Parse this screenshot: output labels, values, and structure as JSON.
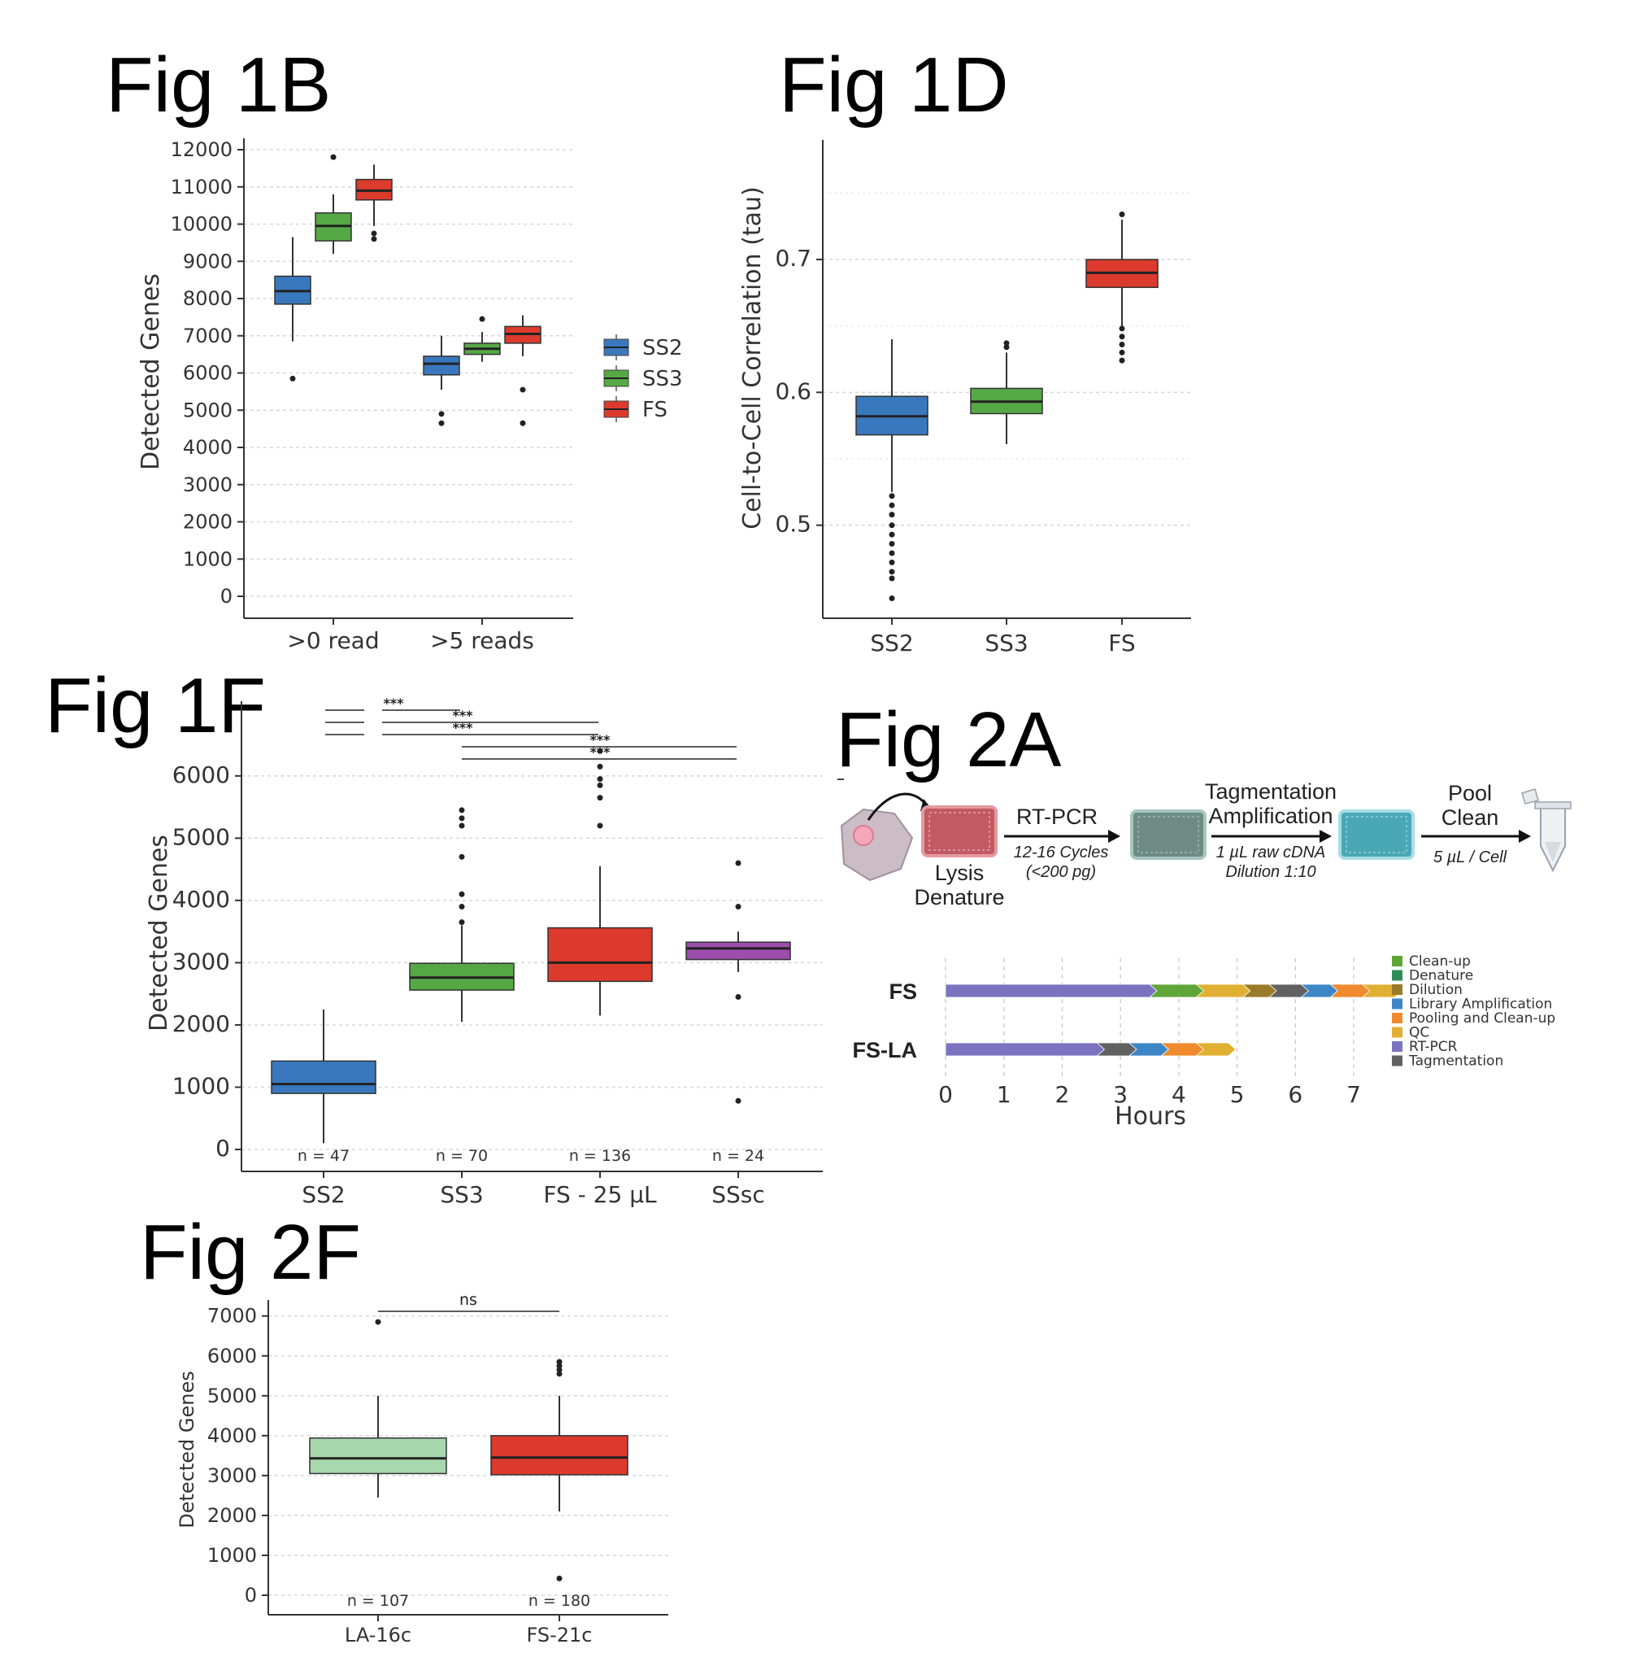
{
  "figures": {
    "fig1b": "Fig 1B",
    "fig1d": "Fig 1D",
    "fig1f": "Fig 1F",
    "fig2a": "Fig 2A",
    "fig2f": "Fig 2F"
  },
  "chart_data": [
    {
      "id": "fig1b",
      "type": "box",
      "ylabel": "Detected Genes",
      "ylim": [
        0,
        12000
      ],
      "yticks": [
        0,
        1000,
        2000,
        3000,
        4000,
        5000,
        6000,
        7000,
        8000,
        9000,
        10000,
        11000,
        12000
      ],
      "categories": [
        ">0 read",
        ">5 reads"
      ],
      "legend_position": "right",
      "series": [
        {
          "name": "SS2",
          "color": "#3a78bd",
          "boxes": [
            {
              "q1": 7850,
              "median": 8200,
              "q3": 8600,
              "whisker_low": 6850,
              "whisker_high": 9650,
              "outliers": [
                5850
              ]
            },
            {
              "q1": 5950,
              "median": 6250,
              "q3": 6450,
              "whisker_low": 5550,
              "whisker_high": 7000,
              "outliers": [
                4900,
                4650
              ]
            }
          ]
        },
        {
          "name": "SS3",
          "color": "#56a846",
          "boxes": [
            {
              "q1": 9550,
              "median": 9950,
              "q3": 10300,
              "whisker_low": 9200,
              "whisker_high": 10800,
              "outliers": [
                11800
              ]
            },
            {
              "q1": 6500,
              "median": 6650,
              "q3": 6800,
              "whisker_low": 6300,
              "whisker_high": 7100,
              "outliers": [
                7450
              ]
            }
          ]
        },
        {
          "name": "FS",
          "color": "#dc3a2d",
          "boxes": [
            {
              "q1": 10650,
              "median": 10900,
              "q3": 11200,
              "whisker_low": 9950,
              "whisker_high": 11600,
              "outliers": [
                9750,
                9600
              ]
            },
            {
              "q1": 6800,
              "median": 7050,
              "q3": 7250,
              "whisker_low": 6450,
              "whisker_high": 7550,
              "outliers": [
                5550,
                4650
              ]
            }
          ]
        }
      ]
    },
    {
      "id": "fig1d",
      "type": "box",
      "ylabel": "Cell-to-Cell Correlation (tau)",
      "ylim": [
        0.43,
        0.79
      ],
      "yticks": [
        0.5,
        0.6,
        0.7
      ],
      "ytick_labels": [
        "0.5",
        "0.6",
        "0.7"
      ],
      "categories": [
        "SS2",
        "SS3",
        "FS"
      ],
      "boxes": [
        {
          "color": "#3a78bd",
          "q1": 0.568,
          "median": 0.582,
          "q3": 0.597,
          "whisker_low": 0.525,
          "whisker_high": 0.64,
          "outliers": [
            0.522,
            0.515,
            0.508,
            0.5,
            0.493,
            0.486,
            0.479,
            0.472,
            0.465,
            0.46,
            0.445
          ]
        },
        {
          "color": "#56a846",
          "q1": 0.584,
          "median": 0.593,
          "q3": 0.603,
          "whisker_low": 0.561,
          "whisker_high": 0.63,
          "outliers": [
            0.634,
            0.637
          ]
        },
        {
          "color": "#dc3a2d",
          "q1": 0.679,
          "median": 0.69,
          "q3": 0.7,
          "whisker_low": 0.65,
          "whisker_high": 0.73,
          "outliers": [
            0.648,
            0.642,
            0.636,
            0.63,
            0.624,
            0.734
          ]
        }
      ]
    },
    {
      "id": "fig1f",
      "type": "box",
      "ylabel": "Detected Genes",
      "ylim": [
        0,
        7200
      ],
      "yticks": [
        0,
        1000,
        2000,
        3000,
        4000,
        5000,
        6000
      ],
      "categories": [
        "SS2",
        "SS3",
        "FS - 25 µL",
        "SSsc"
      ],
      "n_labels": [
        "n = 47",
        "n = 70",
        "n = 136",
        "n = 24"
      ],
      "significance": [
        "***",
        "***",
        "***",
        "***",
        "***"
      ],
      "boxes": [
        {
          "color": "#3a78bd",
          "q1": 900,
          "median": 1050,
          "q3": 1420,
          "whisker_low": 100,
          "whisker_high": 2250,
          "outliers": []
        },
        {
          "color": "#56a846",
          "q1": 2560,
          "median": 2760,
          "q3": 2990,
          "whisker_low": 2050,
          "whisker_high": 3600,
          "outliers": [
            3650,
            3900,
            4100,
            4700,
            5200,
            5320,
            5450
          ]
        },
        {
          "color": "#dc3a2d",
          "q1": 2700,
          "median": 3000,
          "q3": 3560,
          "whisker_low": 2150,
          "whisker_high": 4550,
          "outliers": [
            5200,
            5650,
            5850,
            5950,
            6150,
            6400
          ]
        },
        {
          "color": "#9c4dad",
          "q1": 3050,
          "median": 3230,
          "q3": 3330,
          "whisker_low": 2850,
          "whisker_high": 3500,
          "outliers": [
            4600,
            3900,
            2450,
            780
          ]
        }
      ]
    },
    {
      "id": "fig2a",
      "type": "bar",
      "orientation": "horizontal-stacked",
      "xlabel": "Hours",
      "xlim": [
        0,
        7.5
      ],
      "xticks": [
        0,
        1,
        2,
        3,
        4,
        5,
        6,
        7
      ],
      "categories": [
        "FS",
        "FS-LA"
      ],
      "legend": [
        {
          "name": "Clean-up",
          "color": "#5fa639"
        },
        {
          "name": "Denature",
          "color": "#2e8b57"
        },
        {
          "name": "Dilution",
          "color": "#9a7b29"
        },
        {
          "name": "Library Amplification",
          "color": "#3d86c6"
        },
        {
          "name": "Pooling and Clean-up",
          "color": "#ef8a2e"
        },
        {
          "name": "QC",
          "color": "#e0b032"
        },
        {
          "name": "RT-PCR",
          "color": "#7b73c0"
        },
        {
          "name": "Tagmentation",
          "color": "#616161"
        }
      ],
      "rows": [
        {
          "label": "FS",
          "segments": [
            {
              "step": "RT-PCR",
              "hours": 3.5
            },
            {
              "step": "Clean-up",
              "hours": 0.8
            },
            {
              "step": "QC",
              "hours": 0.8
            },
            {
              "step": "Dilution",
              "hours": 0.45
            },
            {
              "step": "Tagmentation",
              "hours": 0.55
            },
            {
              "step": "Library Amplification",
              "hours": 0.5
            },
            {
              "step": "Pooling and Clean-up",
              "hours": 0.55
            },
            {
              "step": "QC",
              "hours": 0.55
            }
          ]
        },
        {
          "label": "FS-LA",
          "segments": [
            {
              "step": "RT-PCR",
              "hours": 2.6
            },
            {
              "step": "Tagmentation",
              "hours": 0.55
            },
            {
              "step": "Library Amplification",
              "hours": 0.55
            },
            {
              "step": "Pooling and Clean-up",
              "hours": 0.6
            },
            {
              "step": "QC",
              "hours": 0.55
            }
          ]
        }
      ],
      "workflow": {
        "lysis": "Lysis",
        "denature": "Denature",
        "rtpcr": "RT-PCR",
        "rtpcr_note1": "12-16 Cycles",
        "rtpcr_note2": "(<200 pg)",
        "tag": "Tagmentation",
        "amp": "Amplification",
        "tag_note1": "1 µL raw cDNA",
        "tag_note2": "Dilution 1:10",
        "pool": "Pool",
        "clean": "Clean",
        "pool_note": "5 µL / Cell"
      }
    },
    {
      "id": "fig2f",
      "type": "box",
      "ylabel": "Detected Genes",
      "ylim": [
        0,
        7300
      ],
      "yticks": [
        0,
        1000,
        2000,
        3000,
        4000,
        5000,
        6000,
        7000
      ],
      "categories": [
        "LA-16c",
        "FS-21c"
      ],
      "n_labels": [
        "n = 107",
        "n = 180"
      ],
      "significance": "ns",
      "boxes": [
        {
          "color": "#a9d8ae",
          "q1": 3050,
          "median": 3430,
          "q3": 3940,
          "whisker_low": 2450,
          "whisker_high": 5000,
          "outliers": [
            6850
          ]
        },
        {
          "color": "#dc3a2d",
          "q1": 3020,
          "median": 3450,
          "q3": 4000,
          "whisker_low": 2100,
          "whisker_high": 5000,
          "outliers": [
            5850,
            5750,
            5650,
            5550,
            420
          ]
        }
      ]
    }
  ]
}
